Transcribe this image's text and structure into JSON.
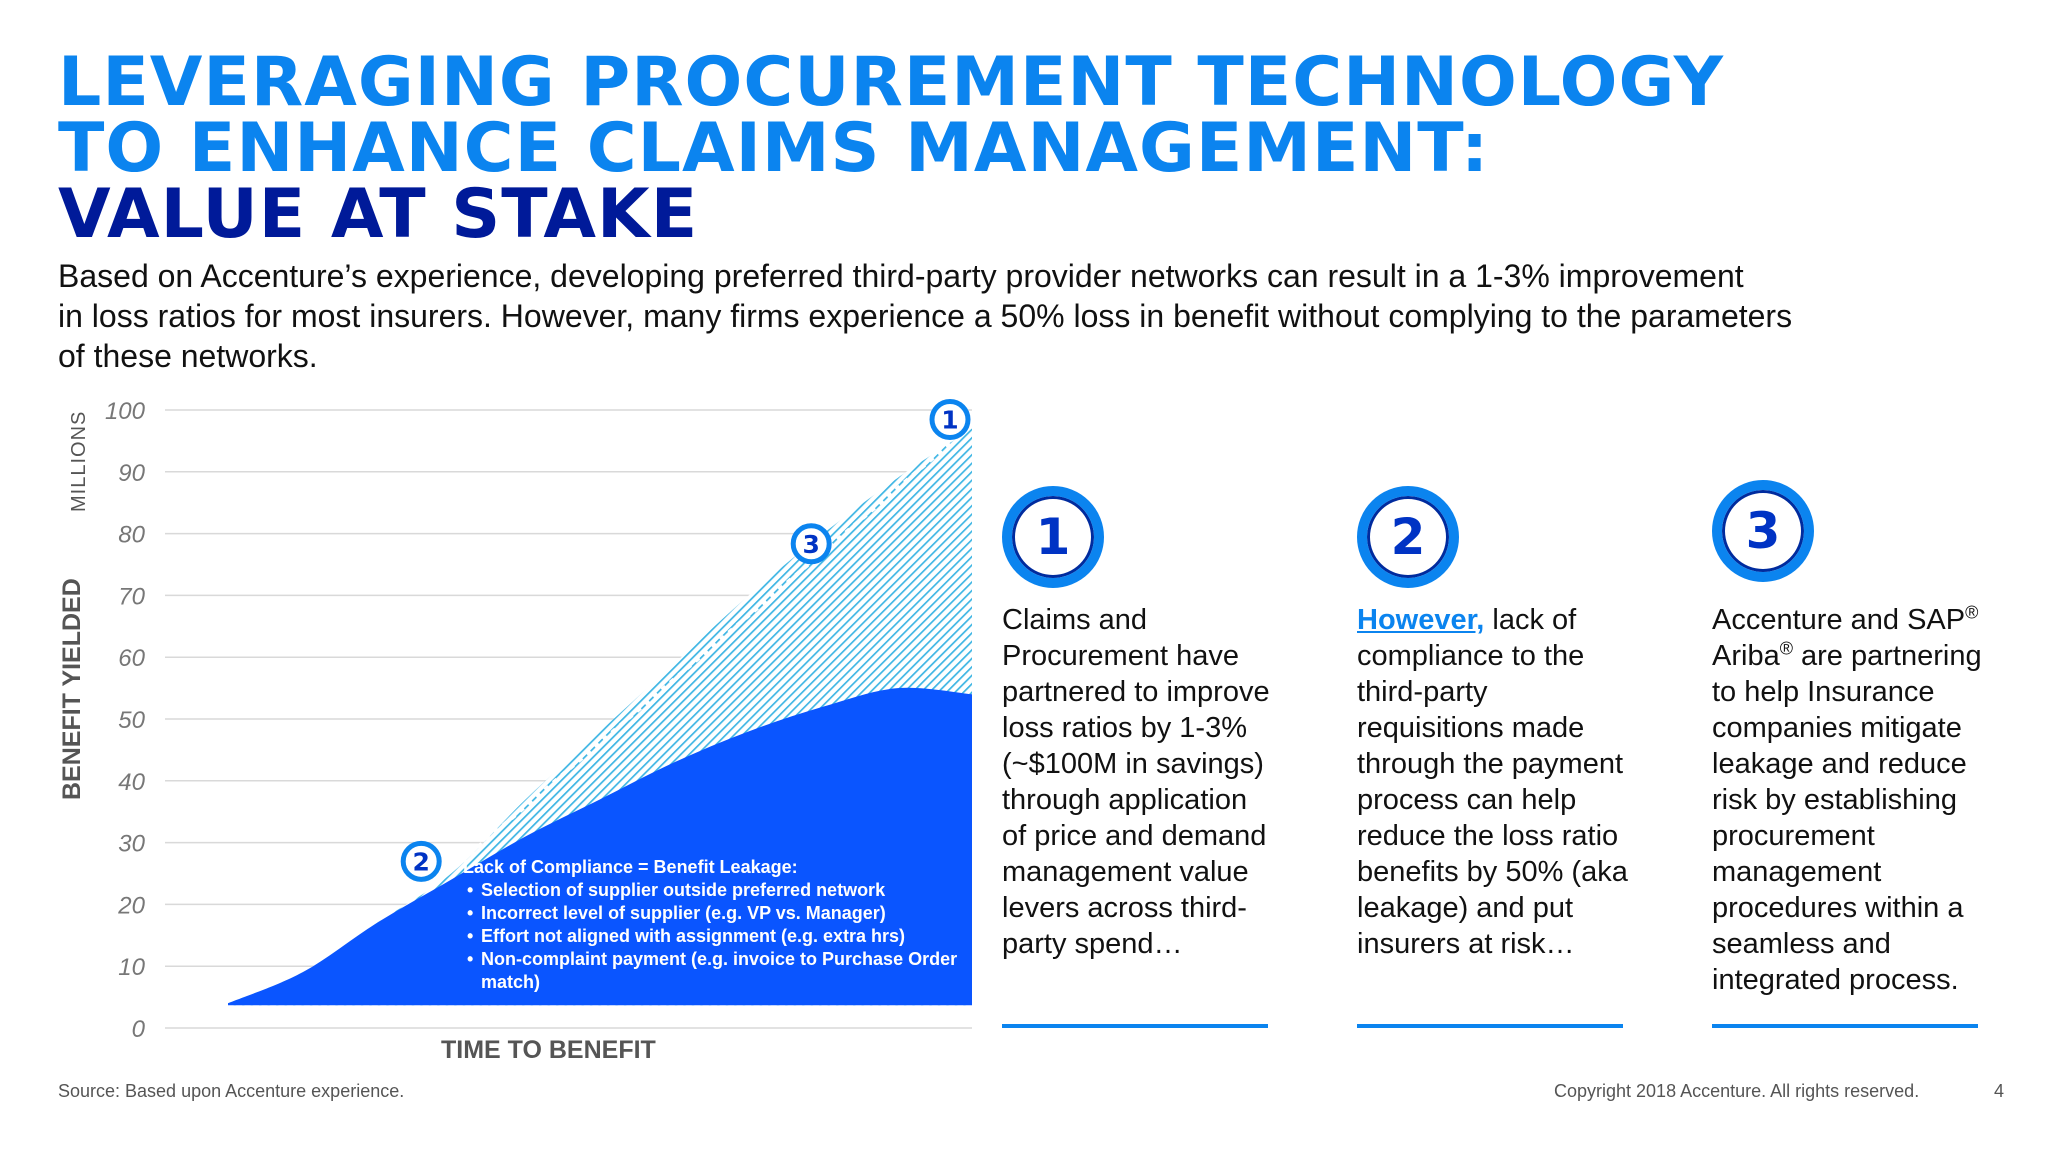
{
  "title": {
    "line1": "LEVERAGING PROCUREMENT TECHNOLOGY",
    "line2": "TO ENHANCE CLAIMS MANAGEMENT:",
    "line3": "VALUE AT STAKE"
  },
  "intro": {
    "line1": "Based on Accenture’s experience, developing preferred third-party provider networks can result in a 1-3% improvement",
    "line2": "in loss ratios for most insurers. However, many firms experience a 50% loss in benefit without complying to the parameters",
    "line3": "of these networks."
  },
  "chart_data": {
    "type": "area",
    "title": "",
    "xlabel": "TIME TO BENEFIT",
    "ylabel": "BENEFIT YIELDED",
    "y_unit_label": "MILLIONS",
    "ylim": [
      0,
      100
    ],
    "yticks": [
      0,
      10,
      20,
      30,
      40,
      50,
      60,
      70,
      80,
      90,
      100
    ],
    "x_tick_labels": "none",
    "grid": true,
    "legend": "none",
    "x": [
      0,
      1,
      2,
      3,
      4,
      5,
      6,
      7,
      8,
      9,
      10
    ],
    "series": [
      {
        "name": "",
        "style": "hatched-light-blue",
        "values": [
          4,
          9,
          17,
          25,
          37,
          48,
          59,
          70,
          80,
          89,
          97
        ]
      },
      {
        "name": "",
        "style": "solid-blue",
        "values": [
          4,
          9,
          17,
          24,
          31,
          37,
          43,
          48,
          52,
          55,
          54
        ]
      }
    ],
    "markers": [
      {
        "label": "1",
        "x": 10,
        "y": 97
      },
      {
        "label": "3",
        "x": 8,
        "y": 79
      },
      {
        "label": "2",
        "x": 3,
        "y": 26
      }
    ],
    "annotation": {
      "title": "Lack of Compliance = Benefit Leakage:",
      "items": [
        "Selection of supplier outside preferred network",
        "Incorrect level of supplier (e.g. VP vs. Manager)",
        "Effort not aligned with assignment (e.g. extra hrs)",
        "Non-complaint payment (e.g. invoice to Purchase Order match)"
      ]
    },
    "colors": {
      "hatch": "#3fb6e4",
      "solid": "#0a55ff",
      "grid": "#d9d9d9",
      "tick": "#777777"
    }
  },
  "columns": [
    {
      "badge": "1",
      "lines": [
        "Claims and",
        "Procurement have",
        "partnered to improve",
        "loss ratios by 1-3%",
        "(~$100M in savings)",
        "through application",
        "of price and demand",
        "management value",
        "levers across third-",
        "party spend…"
      ]
    },
    {
      "badge": "2",
      "highlight": "However,",
      "first_rest": " lack of",
      "lines": [
        "compliance to the",
        "third-party",
        "requisitions made",
        "through the payment",
        "process can help",
        "reduce the loss ratio",
        "benefits by 50% (aka",
        "leakage) and put",
        "insurers at risk…"
      ]
    },
    {
      "badge": "3",
      "line1_a": "Accenture and SAP",
      "line2_a": "Ariba",
      "line2_b": " are partnering",
      "registered": "®",
      "lines": [
        "to help Insurance",
        "companies mitigate",
        "leakage and reduce",
        "risk by establishing",
        "procurement",
        "management",
        "procedures within a",
        "seamless and",
        "integrated process."
      ]
    }
  ],
  "footer": {
    "source": "Source: Based upon Accenture experience.",
    "copyright": "Copyright 2018 Accenture. All rights reserved.",
    "page": "4"
  },
  "colors": {
    "accent": "#0b84ef",
    "navy": "#001a99",
    "badge_text": "#0033c4"
  }
}
